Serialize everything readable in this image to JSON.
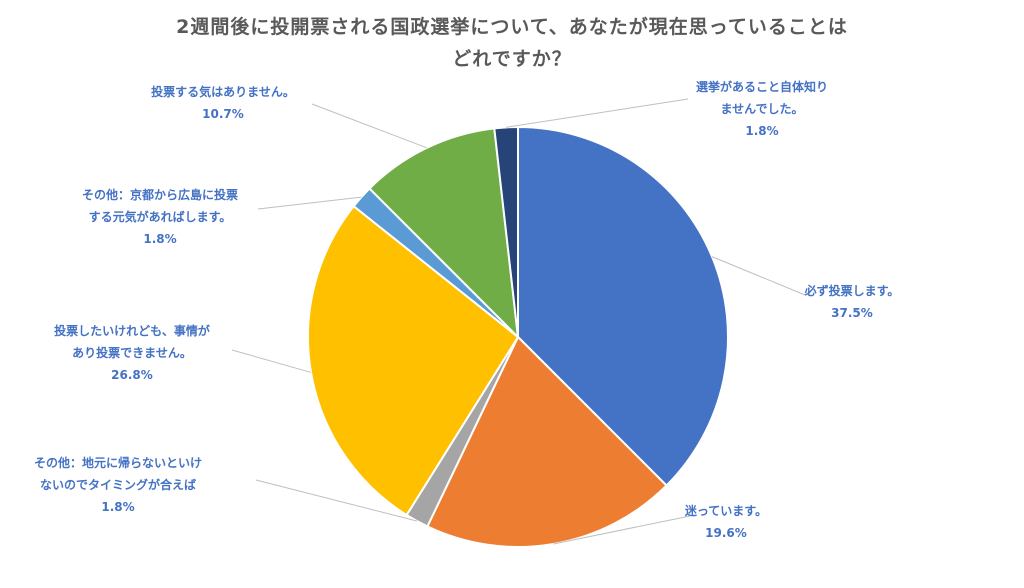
{
  "chart_data": {
    "type": "pie",
    "title_lines": [
      "2週間後に投開票される国政選挙について、あなたが現在思っていることは",
      "どれですか？"
    ],
    "slices": [
      {
        "name": "必ず投票します。",
        "label_lines": [
          "必ず投票します。"
        ],
        "value": 37.5,
        "value_label": "37.5%",
        "color": "#4472C4"
      },
      {
        "name": "迷っています。",
        "label_lines": [
          "迷っています。"
        ],
        "value": 19.6,
        "value_label": "19.6%",
        "color": "#ED7D31"
      },
      {
        "name": "その他：地元に帰らないといけないのでタイミングが合えば",
        "label_lines": [
          "その他：地元に帰らないといけ",
          "ないのでタイミングが合えば"
        ],
        "value": 1.8,
        "value_label": "1.8%",
        "color": "#A5A5A5"
      },
      {
        "name": "投票したいけれども、事情があり投票できません。",
        "label_lines": [
          "投票したいけれども、事情が",
          "あり投票できません。"
        ],
        "value": 26.8,
        "value_label": "26.8%",
        "color": "#FFC000"
      },
      {
        "name": "その他：京都から広島に投票する元気があればします。",
        "label_lines": [
          "その他：京都から広島に投票",
          "する元気があればします。"
        ],
        "value": 1.8,
        "value_label": "1.8%",
        "color": "#5B9BD5"
      },
      {
        "name": "投票する気はありません。",
        "label_lines": [
          "投票する気はありません。"
        ],
        "value": 10.7,
        "value_label": "10.7%",
        "color": "#70AD47"
      },
      {
        "name": "選挙があること自体知りませんでした。",
        "label_lines": [
          "選挙があること自体知り",
          "ませんでした。"
        ],
        "value": 1.8,
        "value_label": "1.8%",
        "color": "#264478"
      }
    ]
  }
}
